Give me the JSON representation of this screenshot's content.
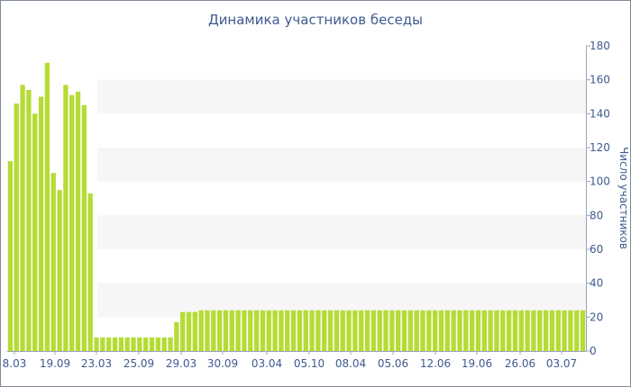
{
  "chart_data": {
    "type": "bar",
    "title": "Динамика участников беседы",
    "ylabel": "Число участников",
    "xlabel": "",
    "ylim": [
      0,
      180
    ],
    "yticks": [
      0,
      20,
      40,
      60,
      80,
      100,
      120,
      140,
      160,
      180
    ],
    "y_axis_position": "right",
    "grid": "alternating horizontal bands",
    "bar_color": "#b5dc34",
    "x_tick_labels": [
      "8.03",
      "19.09",
      "23.03",
      "25.09",
      "29.03",
      "30.09",
      "03.04",
      "05.10",
      "08.04",
      "05.06",
      "12.06",
      "19.06",
      "26.06",
      "03.07"
    ],
    "values": [
      112,
      146,
      157,
      154,
      140,
      150,
      170,
      105,
      95,
      157,
      151,
      153,
      145,
      93,
      8,
      8,
      8,
      8,
      8,
      8,
      8,
      8,
      8,
      8,
      8,
      8,
      8,
      17,
      23,
      23,
      23,
      24,
      24,
      24,
      24,
      24,
      24,
      24,
      24,
      24,
      24,
      24,
      24,
      24,
      24,
      24,
      24,
      24,
      24,
      24,
      24,
      24,
      24,
      24,
      24,
      24,
      24,
      24,
      24,
      24,
      24,
      24,
      24,
      24,
      24,
      24,
      24,
      24,
      24,
      24,
      24,
      24,
      24,
      24,
      24,
      24,
      24,
      24,
      24,
      24,
      24,
      24,
      24,
      24,
      24,
      24,
      24,
      24,
      24,
      24,
      24,
      24,
      24,
      24
    ]
  }
}
